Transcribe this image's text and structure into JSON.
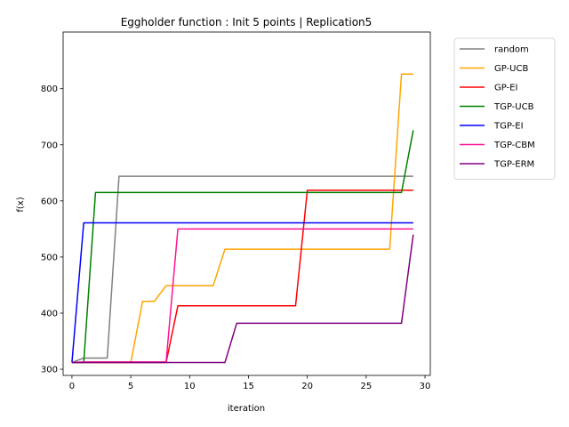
{
  "chart_data": {
    "type": "line",
    "title": "Eggholder function : Init 5 points | Replication5",
    "xlabel": "iteration",
    "ylabel": "f(x)",
    "xlim": [
      -0.75,
      30.45
    ],
    "ylim": [
      289,
      901
    ],
    "xticks": [
      0,
      5,
      10,
      15,
      20,
      25,
      30
    ],
    "yticks": [
      300,
      400,
      500,
      600,
      700,
      800
    ],
    "grid": false,
    "legend_placement": "outside-upper-right",
    "x": [
      0,
      1,
      2,
      3,
      4,
      5,
      6,
      7,
      8,
      9,
      10,
      11,
      12,
      13,
      14,
      15,
      16,
      17,
      18,
      19,
      20,
      21,
      22,
      23,
      24,
      25,
      26,
      27,
      28,
      29
    ],
    "series": [
      {
        "name": "random",
        "color": "#808080",
        "values": [
          312,
          320,
          320,
          320,
          644,
          644,
          644,
          644,
          644,
          644,
          644,
          644,
          644,
          644,
          644,
          644,
          644,
          644,
          644,
          644,
          644,
          644,
          644,
          644,
          644,
          644,
          644,
          644,
          644,
          644
        ]
      },
      {
        "name": "GP-UCB",
        "color": "#ffa500",
        "values": [
          312,
          312,
          312,
          312,
          312,
          312,
          421,
          421,
          449,
          449,
          449,
          449,
          449,
          514,
          514,
          514,
          514,
          514,
          514,
          514,
          514,
          514,
          514,
          514,
          514,
          514,
          514,
          514,
          826,
          826
        ]
      },
      {
        "name": "GP-EI",
        "color": "#ff0000",
        "values": [
          312,
          312,
          312,
          312,
          312,
          312,
          312,
          312,
          312,
          413,
          413,
          413,
          413,
          413,
          413,
          413,
          413,
          413,
          413,
          413,
          619,
          619,
          619,
          619,
          619,
          619,
          619,
          619,
          619,
          619
        ]
      },
      {
        "name": "TGP-UCB",
        "color": "#008000",
        "values": [
          312,
          312,
          615,
          615,
          615,
          615,
          615,
          615,
          615,
          615,
          615,
          615,
          615,
          615,
          615,
          615,
          615,
          615,
          615,
          615,
          615,
          615,
          615,
          615,
          615,
          615,
          615,
          615,
          615,
          726
        ]
      },
      {
        "name": "TGP-EI",
        "color": "#0000ff",
        "values": [
          312,
          561,
          561,
          561,
          561,
          561,
          561,
          561,
          561,
          561,
          561,
          561,
          561,
          561,
          561,
          561,
          561,
          561,
          561,
          561,
          561,
          561,
          561,
          561,
          561,
          561,
          561,
          561,
          561,
          561
        ]
      },
      {
        "name": "TGP-CBM",
        "color": "#ff1493",
        "values": [
          312,
          313,
          313,
          313,
          313,
          313,
          313,
          313,
          313,
          550,
          550,
          550,
          550,
          550,
          550,
          550,
          550,
          550,
          550,
          550,
          550,
          550,
          550,
          550,
          550,
          550,
          550,
          550,
          550,
          550
        ]
      },
      {
        "name": "TGP-ERM",
        "color": "#800080",
        "values": [
          312,
          312,
          312,
          312,
          312,
          312,
          312,
          312,
          312,
          312,
          312,
          312,
          312,
          312,
          382,
          382,
          382,
          382,
          382,
          382,
          382,
          382,
          382,
          382,
          382,
          382,
          382,
          382,
          382,
          540
        ]
      }
    ]
  }
}
